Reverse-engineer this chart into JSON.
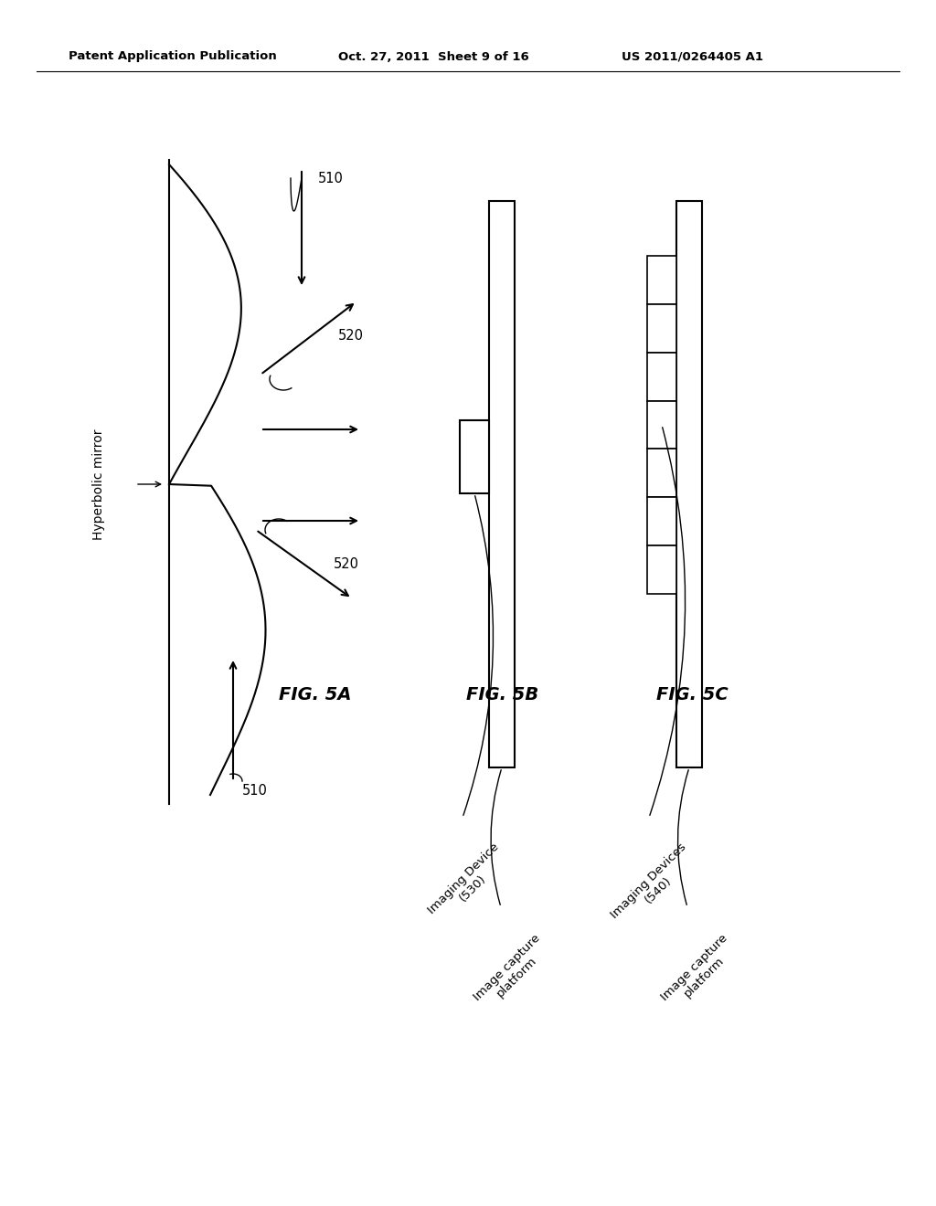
{
  "bg_color": "#ffffff",
  "header_left": "Patent Application Publication",
  "header_mid": "Oct. 27, 2011  Sheet 9 of 16",
  "header_right": "US 2011/0264405 A1",
  "fig5a_label": "FIG. 5A",
  "fig5b_label": "FIG. 5B",
  "fig5c_label": "FIG. 5C",
  "label_510_top": "510",
  "label_510_bot": "510",
  "label_520_top": "520",
  "label_520_bot": "520",
  "label_hyperbolic": "Hyperbolic mirror",
  "label_imaging_device": "Imaging Device\n(530)",
  "label_image_capture_5b": "Image capture\nplatform",
  "label_imaging_devices": "Imaging Devices\n(540)",
  "label_image_capture_5c": "Image capture\nplatform"
}
